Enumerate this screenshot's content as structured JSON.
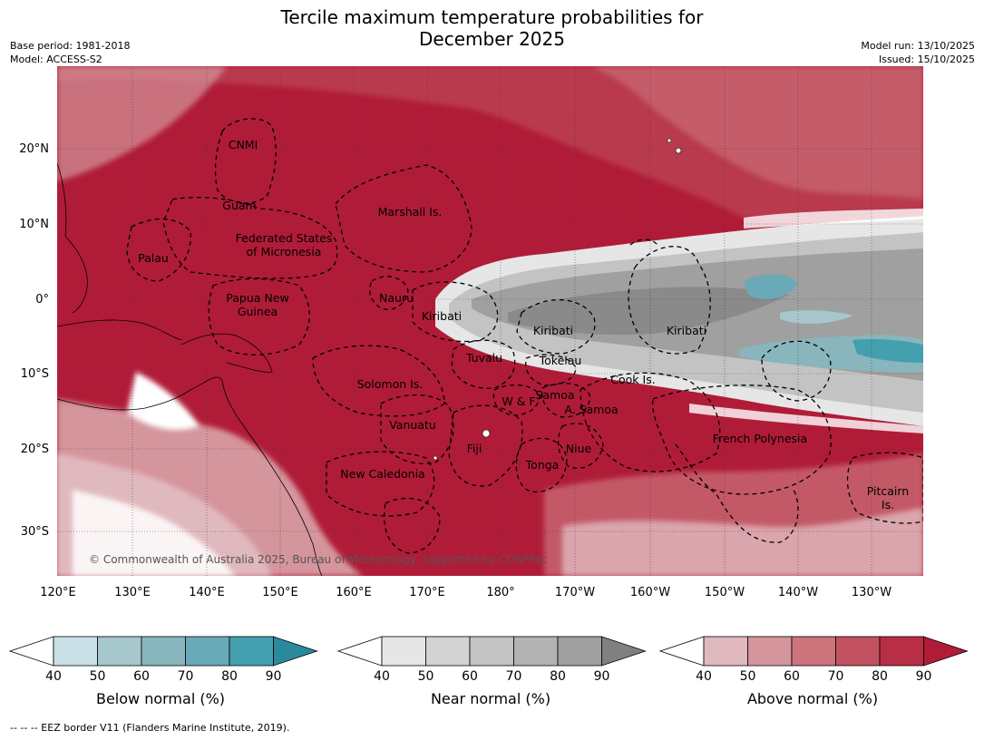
{
  "title_line1": "Tercile maximum temperature probabilities for",
  "title_line2": "December 2025",
  "meta_left": [
    "Base period: 1981-2018",
    "Model: ACCESS-S2"
  ],
  "meta_right": [
    "Model run: 13/10/2025",
    "Issued: 15/10/2025"
  ],
  "lat_labels": [
    "20°N",
    "10°N",
    "0°",
    "10°S",
    "20°S",
    "30°S"
  ],
  "lon_labels": [
    "120°E",
    "130°E",
    "140°E",
    "150°E",
    "160°E",
    "170°E",
    "180°",
    "170°W",
    "160°W",
    "150°W",
    "140°W",
    "130°W"
  ],
  "copyright": "© Commonwealth of Australia 2025, Bureau of Meteorology, supported by COSPPac",
  "regions": [
    "CNMI",
    "Guam",
    "Marshall Is.",
    "Federated States",
    "of Micronesia",
    "Palau",
    "Papua New",
    "Guinea",
    "Nauru",
    "Kiribati",
    "Kiribati",
    "Kiribati",
    "Tuvalu",
    "Tokelau",
    "Cook Is.",
    "Solomon Is.",
    "W & F",
    "Samoa",
    "A. Samoa",
    "Vanuatu",
    "Fiji",
    "Niue",
    "Tonga",
    "French Polynesia",
    "New Caledonia",
    "Pitcairn",
    "Is."
  ],
  "colorbars": [
    {
      "label": "Below normal (%)",
      "ticks": [
        "40",
        "50",
        "60",
        "70",
        "80",
        "90"
      ],
      "colors": [
        "#ffffff",
        "#c9e0e6",
        "#a6c7cc",
        "#89b5bc",
        "#6aa9b7",
        "#449fae",
        "#2a8a9c"
      ]
    },
    {
      "label": "Near normal (%)",
      "ticks": [
        "40",
        "50",
        "60",
        "70",
        "80",
        "90"
      ],
      "colors": [
        "#ffffff",
        "#e6e6e6",
        "#d3d3d3",
        "#c3c3c3",
        "#b3b3b3",
        "#a0a0a0",
        "#808080"
      ]
    },
    {
      "label": "Above normal (%)",
      "ticks": [
        "40",
        "50",
        "60",
        "70",
        "80",
        "90"
      ],
      "colors": [
        "#ffffff",
        "#e0b9be",
        "#d5959c",
        "#cc737b",
        "#c2525f",
        "#b82e44",
        "#b01c38"
      ]
    }
  ],
  "footnote": "--  --  -- EEZ border V11 (Flanders Marine Institute, 2019)."
}
